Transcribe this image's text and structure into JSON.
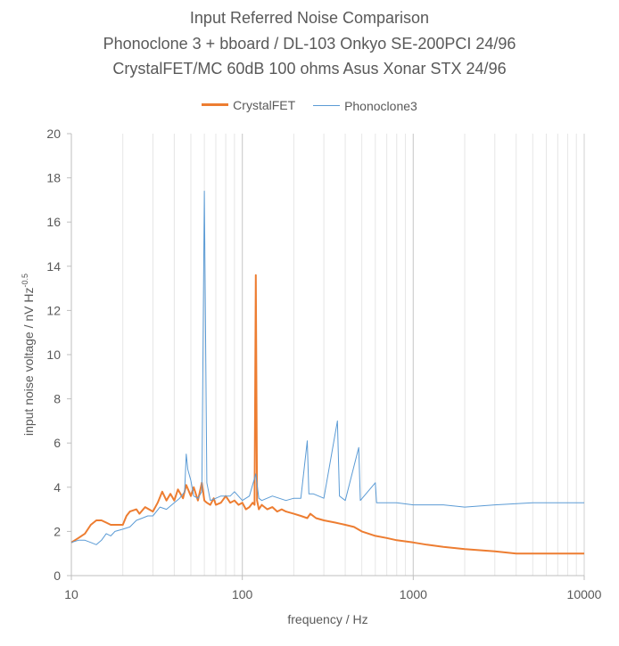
{
  "chart_data": {
    "type": "line",
    "title_lines": [
      "Input Referred Noise Comparison",
      "Phonoclone 3 + bboard / DL-103 Onkyo SE-200PCI 24/96",
      "CrystalFET/MC 60dB 100 ohms Asus Xonar STX 24/96"
    ],
    "xlabel": "frequency / Hz",
    "ylabel": "input noise voltage / nV Hz",
    "ylabel_superscript": "-0.5",
    "x_scale": "log",
    "xlim": [
      10,
      10000
    ],
    "ylim": [
      0,
      20
    ],
    "x_ticks": [
      "10",
      "100",
      "1000",
      "10000"
    ],
    "y_ticks": [
      "0",
      "2",
      "4",
      "6",
      "8",
      "10",
      "12",
      "14",
      "16",
      "18",
      "20"
    ],
    "grid": "vertical log minor gridlines",
    "legend_position": "top",
    "series": [
      {
        "name": "CrystalFET",
        "color": "#ED7D31",
        "points": [
          [
            10,
            1.5
          ],
          [
            11,
            1.7
          ],
          [
            12,
            1.9
          ],
          [
            13,
            2.3
          ],
          [
            14,
            2.5
          ],
          [
            15,
            2.5
          ],
          [
            16,
            2.4
          ],
          [
            17,
            2.3
          ],
          [
            18,
            2.3
          ],
          [
            20,
            2.3
          ],
          [
            21,
            2.7
          ],
          [
            22,
            2.9
          ],
          [
            24,
            3.0
          ],
          [
            25,
            2.8
          ],
          [
            27,
            3.1
          ],
          [
            30,
            2.9
          ],
          [
            32,
            3.3
          ],
          [
            34,
            3.8
          ],
          [
            36,
            3.4
          ],
          [
            38,
            3.7
          ],
          [
            40,
            3.4
          ],
          [
            42,
            3.9
          ],
          [
            45,
            3.5
          ],
          [
            47,
            4.1
          ],
          [
            50,
            3.6
          ],
          [
            52,
            4.0
          ],
          [
            55,
            3.4
          ],
          [
            58,
            4.2
          ],
          [
            60,
            3.4
          ],
          [
            62,
            3.3
          ],
          [
            65,
            3.2
          ],
          [
            68,
            3.5
          ],
          [
            70,
            3.2
          ],
          [
            75,
            3.3
          ],
          [
            80,
            3.6
          ],
          [
            85,
            3.3
          ],
          [
            90,
            3.4
          ],
          [
            95,
            3.2
          ],
          [
            100,
            3.3
          ],
          [
            105,
            3.0
          ],
          [
            110,
            3.1
          ],
          [
            115,
            3.3
          ],
          [
            118,
            3.2
          ],
          [
            120,
            13.6
          ],
          [
            122,
            3.4
          ],
          [
            125,
            3.0
          ],
          [
            130,
            3.2
          ],
          [
            140,
            3.0
          ],
          [
            150,
            3.1
          ],
          [
            160,
            2.9
          ],
          [
            170,
            3.0
          ],
          [
            180,
            2.9
          ],
          [
            200,
            2.8
          ],
          [
            220,
            2.7
          ],
          [
            240,
            2.6
          ],
          [
            250,
            2.8
          ],
          [
            270,
            2.6
          ],
          [
            300,
            2.5
          ],
          [
            350,
            2.4
          ],
          [
            400,
            2.3
          ],
          [
            450,
            2.2
          ],
          [
            500,
            2.0
          ],
          [
            600,
            1.8
          ],
          [
            700,
            1.7
          ],
          [
            800,
            1.6
          ],
          [
            1000,
            1.5
          ],
          [
            1200,
            1.4
          ],
          [
            1500,
            1.3
          ],
          [
            2000,
            1.2
          ],
          [
            3000,
            1.1
          ],
          [
            4000,
            1.0
          ],
          [
            5000,
            1.0
          ],
          [
            7000,
            1.0
          ],
          [
            10000,
            1.0
          ]
        ]
      },
      {
        "name": "Phonoclone3",
        "color": "#5B9BD5",
        "points": [
          [
            10,
            1.5
          ],
          [
            11,
            1.6
          ],
          [
            12,
            1.6
          ],
          [
            13,
            1.5
          ],
          [
            14,
            1.4
          ],
          [
            15,
            1.6
          ],
          [
            16,
            1.9
          ],
          [
            17,
            1.8
          ],
          [
            18,
            2.0
          ],
          [
            20,
            2.1
          ],
          [
            22,
            2.2
          ],
          [
            24,
            2.5
          ],
          [
            26,
            2.6
          ],
          [
            28,
            2.7
          ],
          [
            30,
            2.7
          ],
          [
            33,
            3.1
          ],
          [
            36,
            3.0
          ],
          [
            40,
            3.3
          ],
          [
            43,
            3.5
          ],
          [
            46,
            3.8
          ],
          [
            47,
            5.5
          ],
          [
            48,
            4.8
          ],
          [
            50,
            4.3
          ],
          [
            52,
            3.6
          ],
          [
            55,
            3.5
          ],
          [
            58,
            3.8
          ],
          [
            60,
            17.4
          ],
          [
            62,
            4.2
          ],
          [
            65,
            3.4
          ],
          [
            70,
            3.5
          ],
          [
            75,
            3.6
          ],
          [
            80,
            3.6
          ],
          [
            85,
            3.6
          ],
          [
            90,
            3.8
          ],
          [
            100,
            3.4
          ],
          [
            110,
            3.6
          ],
          [
            120,
            4.6
          ],
          [
            125,
            3.5
          ],
          [
            130,
            3.4
          ],
          [
            150,
            3.6
          ],
          [
            180,
            3.4
          ],
          [
            200,
            3.5
          ],
          [
            220,
            3.5
          ],
          [
            240,
            6.1
          ],
          [
            245,
            3.7
          ],
          [
            260,
            3.7
          ],
          [
            300,
            3.5
          ],
          [
            360,
            7.0
          ],
          [
            370,
            3.6
          ],
          [
            400,
            3.4
          ],
          [
            480,
            5.8
          ],
          [
            490,
            3.4
          ],
          [
            600,
            4.2
          ],
          [
            610,
            3.3
          ],
          [
            800,
            3.3
          ],
          [
            1000,
            3.2
          ],
          [
            1500,
            3.2
          ],
          [
            2000,
            3.1
          ],
          [
            3000,
            3.2
          ],
          [
            5000,
            3.3
          ],
          [
            7000,
            3.3
          ],
          [
            10000,
            3.3
          ]
        ]
      }
    ]
  }
}
